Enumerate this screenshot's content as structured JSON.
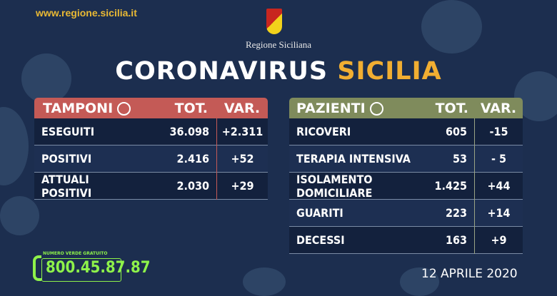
{
  "header": {
    "url": "www.regione.sicilia.it",
    "region_name": "Regione Siciliana",
    "title_white": "CORONAVIRUS",
    "title_yellow": "SICILIA",
    "logo_text": "Regione Siciliana"
  },
  "colors": {
    "background": "#1c2e4f",
    "tamponi_header": "#c45a56",
    "pazienti_header": "#7f8b5c",
    "accent_yellow": "#f1ae32",
    "phone_green": "#8ef24a"
  },
  "tamponi": {
    "title": "TAMPONI",
    "icon": "swab-icon",
    "col_tot": "TOT.",
    "col_var": "VAR.",
    "rows": [
      {
        "label": "ESEGUITI",
        "tot": "36.098",
        "var": "+2.311"
      },
      {
        "label": "POSITIVI",
        "tot": "2.416",
        "var": "+52"
      },
      {
        "label": "ATTUALI POSITIVI",
        "tot": "2.030",
        "var": "+29"
      }
    ]
  },
  "pazienti": {
    "title": "PAZIENTI",
    "icon": "person-icon",
    "col_tot": "TOT.",
    "col_var": "VAR.",
    "rows": [
      {
        "label": "RICOVERI",
        "tot": "605",
        "var": "-15"
      },
      {
        "label": "TERAPIA INTENSIVA",
        "tot": "53",
        "var": "- 5"
      },
      {
        "label": "ISOLAMENTO DOMICILIARE",
        "tot": "1.425",
        "var": "+44"
      },
      {
        "label": "GUARITI",
        "tot": "223",
        "var": "+14"
      },
      {
        "label": "DECESSI",
        "tot": "163",
        "var": "+9"
      }
    ]
  },
  "footer": {
    "phone_label": "NUMERO VERDE GRATUITO",
    "phone_number": "800.45.87.87",
    "date": "12 APRILE 2020"
  }
}
